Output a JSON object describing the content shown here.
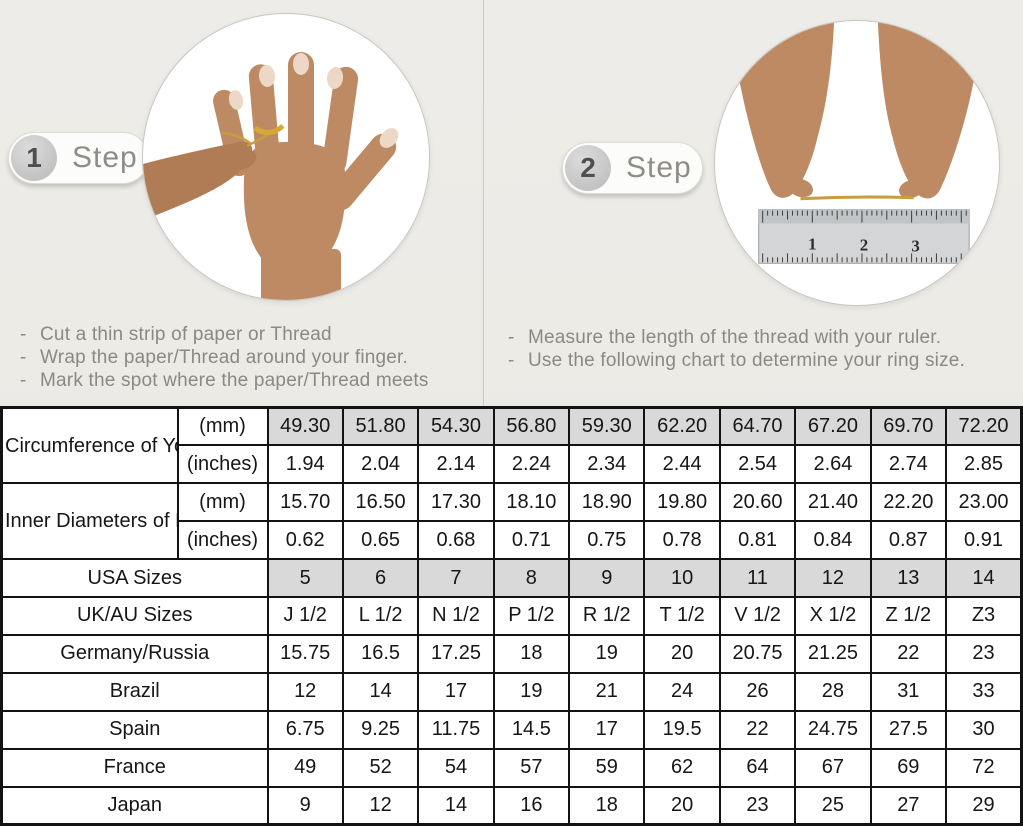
{
  "page": {
    "background_color": "#ecebe7",
    "table_shaded_color": "#d9d9d9"
  },
  "steps": [
    {
      "number": "1",
      "label": "Step",
      "photo": "hand-with-thread-wrapped-around-ring-finger",
      "instructions": [
        "Cut a thin strip of paper or Thread",
        "Wrap the paper/Thread around your finger.",
        "Mark the spot where the paper/Thread meets"
      ]
    },
    {
      "number": "2",
      "label": "Step",
      "photo": "hands-measuring-thread-length-with-ruler",
      "ruler_numbers": [
        "1",
        "2",
        "3"
      ],
      "instructions": [
        "Measure the length of the thread with your ruler.",
        "Use the following chart to determine your ring size."
      ]
    }
  ],
  "size_chart": {
    "row_groups": [
      {
        "label": "Circumference of Your Finger",
        "rows": [
          {
            "unit": "(mm)",
            "shaded": true,
            "values": [
              "49.30",
              "51.80",
              "54.30",
              "56.80",
              "59.30",
              "62.20",
              "64.70",
              "67.20",
              "69.70",
              "72.20"
            ]
          },
          {
            "unit": "(inches)",
            "shaded": false,
            "values": [
              "1.94",
              "2.04",
              "2.14",
              "2.24",
              "2.34",
              "2.44",
              "2.54",
              "2.64",
              "2.74",
              "2.85"
            ]
          }
        ]
      },
      {
        "label": "Inner Diameters of Rings",
        "rows": [
          {
            "unit": "(mm)",
            "shaded": false,
            "values": [
              "15.70",
              "16.50",
              "17.30",
              "18.10",
              "18.90",
              "19.80",
              "20.60",
              "21.40",
              "22.20",
              "23.00"
            ]
          },
          {
            "unit": "(inches)",
            "shaded": false,
            "values": [
              "0.62",
              "0.65",
              "0.68",
              "0.71",
              "0.75",
              "0.78",
              "0.81",
              "0.84",
              "0.87",
              "0.91"
            ]
          }
        ]
      }
    ],
    "country_rows": [
      {
        "label": "USA Sizes",
        "shaded": true,
        "values": [
          "5",
          "6",
          "7",
          "8",
          "9",
          "10",
          "11",
          "12",
          "13",
          "14"
        ]
      },
      {
        "label": "UK/AU Sizes",
        "shaded": false,
        "values": [
          "J 1/2",
          "L 1/2",
          "N 1/2",
          "P 1/2",
          "R 1/2",
          "T 1/2",
          "V 1/2",
          "X 1/2",
          "Z 1/2",
          "Z3"
        ]
      },
      {
        "label": "Germany/Russia",
        "shaded": false,
        "values": [
          "15.75",
          "16.5",
          "17.25",
          "18",
          "19",
          "20",
          "20.75",
          "21.25",
          "22",
          "23"
        ]
      },
      {
        "label": "Brazil",
        "shaded": false,
        "values": [
          "12",
          "14",
          "17",
          "19",
          "21",
          "24",
          "26",
          "28",
          "31",
          "33"
        ]
      },
      {
        "label": "Spain",
        "shaded": false,
        "values": [
          "6.75",
          "9.25",
          "11.75",
          "14.5",
          "17",
          "19.5",
          "22",
          "24.75",
          "27.5",
          "30"
        ]
      },
      {
        "label": "France",
        "shaded": false,
        "values": [
          "49",
          "52",
          "54",
          "57",
          "59",
          "62",
          "64",
          "67",
          "69",
          "72"
        ]
      },
      {
        "label": "Japan",
        "shaded": false,
        "values": [
          "9",
          "12",
          "14",
          "16",
          "18",
          "20",
          "23",
          "25",
          "27",
          "29"
        ]
      }
    ]
  }
}
